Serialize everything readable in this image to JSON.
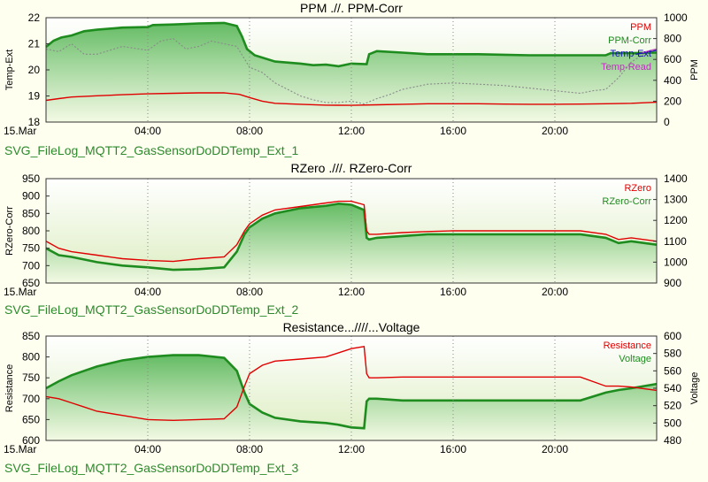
{
  "links": [
    "SVG_FileLog_MQTT2_GasSensorDoDDTemp_Ext_1",
    "SVG_FileLog_MQTT2_GasSensorDoDDTemp_Ext_2",
    "SVG_FileLog_MQTT2_GasSensorDoDDTemp_Ext_3"
  ],
  "colors": {
    "background": "#fffff0",
    "green": "#1e8c1e",
    "red": "#e00000",
    "blue": "#1414b4",
    "magenta": "#c030c0",
    "grey": "#8a8a8a",
    "fill_dark": "#5cb85c",
    "fill_light": "#f6fbe8"
  },
  "chart_data": [
    {
      "type": "line",
      "title": "PPM .//. PPM-Corr",
      "xlabel": "15.Mar",
      "ylabel_left": "Temp-Ext",
      "ylabel_right": "PPM",
      "x_ticks": [
        "04:00",
        "08:00",
        "12:00",
        "16:00",
        "20:00"
      ],
      "x_range_hours": [
        0,
        24
      ],
      "ylim_left": [
        18,
        22
      ],
      "yticks_left": [
        "18",
        "19",
        "20",
        "21",
        "22"
      ],
      "ylim_right": [
        0,
        1000
      ],
      "yticks_right": [
        "0",
        "200",
        "400",
        "600",
        "800",
        "1000"
      ],
      "grid": true,
      "legend": "top-right",
      "series": [
        {
          "name": "PPM",
          "color": "#e00000",
          "axis": "right",
          "x": [
            0,
            0.5,
            1,
            2,
            3,
            4,
            5,
            6,
            7,
            7.6,
            8,
            8.5,
            9,
            10,
            11,
            12,
            13,
            14,
            15,
            16,
            17,
            18,
            19,
            20,
            21,
            22,
            23,
            24
          ],
          "values": [
            208,
            225,
            240,
            252,
            262,
            270,
            275,
            280,
            280,
            265,
            235,
            200,
            180,
            170,
            162,
            160,
            165,
            170,
            175,
            175,
            175,
            172,
            170,
            170,
            172,
            175,
            180,
            190
          ]
        },
        {
          "name": "PPM-Corr",
          "color": "#1e8c1e",
          "axis": "right",
          "fill": true,
          "x": [
            0,
            0.3,
            0.6,
            1,
            1.5,
            2,
            3,
            4,
            4.2,
            5,
            6,
            7,
            7.5,
            7.7,
            7.9,
            8.2,
            9,
            10,
            10.5,
            11,
            11.5,
            12,
            12.6,
            12.7,
            13,
            14,
            15,
            16,
            17,
            18,
            19,
            20,
            21,
            22,
            22.2,
            23,
            24
          ],
          "values": [
            720,
            780,
            810,
            830,
            870,
            885,
            905,
            910,
            930,
            935,
            945,
            950,
            920,
            820,
            700,
            640,
            580,
            560,
            545,
            550,
            535,
            560,
            555,
            650,
            680,
            665,
            650,
            650,
            650,
            645,
            640,
            640,
            640,
            640,
            660,
            660,
            665
          ]
        },
        {
          "name": "Temp-Ext",
          "color": "#1414b4",
          "axis": "left",
          "x": [
            23.2,
            24
          ],
          "values": [
            20.6,
            20.75
          ]
        },
        {
          "name": "Temp-Read",
          "color": "#c030c0",
          "axis": "left",
          "x": [
            23.4,
            24
          ],
          "values": [
            20.65,
            20.8
          ]
        },
        {
          "name": "",
          "color": "#8a8a8a",
          "axis": "left",
          "dashed": true,
          "x": [
            0,
            0.5,
            1,
            1.5,
            2,
            3,
            4,
            4.5,
            5,
            5.5,
            6,
            6.5,
            7,
            7.5,
            8,
            8.5,
            9,
            9.5,
            10,
            10.5,
            11,
            11.5,
            12,
            12.5,
            13,
            13.5,
            14,
            14.5,
            15,
            16,
            17,
            18,
            19,
            20,
            21,
            21.5,
            22,
            22.5,
            23,
            23.5,
            24
          ],
          "values": [
            20.8,
            20.7,
            21.0,
            20.6,
            20.6,
            20.9,
            20.75,
            21.1,
            21.2,
            20.8,
            20.9,
            21.1,
            21.0,
            20.9,
            20.1,
            19.9,
            19.5,
            19.25,
            19.0,
            18.85,
            18.75,
            18.75,
            18.8,
            18.7,
            18.9,
            19.05,
            19.25,
            19.35,
            19.45,
            19.5,
            19.45,
            19.4,
            19.3,
            19.2,
            19.1,
            19.2,
            19.25,
            19.7,
            20.3,
            20.6,
            20.8
          ]
        }
      ]
    },
    {
      "type": "line",
      "title": "RZero .///. RZero-Corr",
      "xlabel": "15.Mar",
      "ylabel_left": "RZero-Corr",
      "ylabel_right": "",
      "x_ticks": [
        "04:00",
        "08:00",
        "12:00",
        "16:00",
        "20:00"
      ],
      "x_range_hours": [
        0,
        24
      ],
      "ylim_left": [
        650,
        950
      ],
      "yticks_left": [
        "650",
        "700",
        "750",
        "800",
        "850",
        "900",
        "950"
      ],
      "ylim_right": [
        900,
        1400
      ],
      "yticks_right": [
        "900",
        "1000",
        "1100",
        "1200",
        "1300",
        "1400"
      ],
      "grid": true,
      "legend": "top-right",
      "series": [
        {
          "name": "RZero",
          "color": "#e00000",
          "axis": "left",
          "x": [
            0,
            0.5,
            1,
            2,
            3,
            4,
            5,
            6,
            7,
            7.5,
            7.8,
            8,
            8.5,
            9,
            10,
            11,
            11.5,
            12,
            12.5,
            12.6,
            12.7,
            13,
            14,
            15,
            16,
            17,
            18,
            19,
            20,
            21,
            22,
            22.5,
            23,
            24
          ],
          "values": [
            770,
            750,
            740,
            730,
            720,
            715,
            712,
            720,
            725,
            760,
            800,
            820,
            845,
            860,
            870,
            880,
            885,
            885,
            875,
            800,
            790,
            790,
            795,
            798,
            800,
            800,
            800,
            800,
            800,
            800,
            790,
            775,
            780,
            770
          ]
        },
        {
          "name": "RZero-Corr",
          "color": "#1e8c1e",
          "axis": "left",
          "fill": true,
          "x": [
            0,
            0.5,
            1,
            2,
            3,
            4,
            5,
            6,
            7,
            7.5,
            7.8,
            8,
            8.5,
            9,
            10,
            11,
            11.5,
            12,
            12.5,
            12.6,
            12.7,
            13,
            14,
            15,
            16,
            17,
            18,
            19,
            20,
            21,
            22,
            22.5,
            23,
            24
          ],
          "values": [
            750,
            730,
            725,
            710,
            700,
            695,
            688,
            690,
            695,
            740,
            790,
            810,
            835,
            850,
            865,
            872,
            878,
            875,
            860,
            780,
            775,
            780,
            785,
            790,
            790,
            790,
            790,
            790,
            790,
            790,
            780,
            765,
            770,
            760
          ]
        }
      ]
    },
    {
      "type": "line",
      "title": "Resistance...////...Voltage",
      "xlabel": "15.Mar",
      "ylabel_left": "Resistance",
      "ylabel_right": "Voltage",
      "x_ticks": [
        "04:00",
        "08:00",
        "12:00",
        "16:00",
        "20:00"
      ],
      "x_range_hours": [
        0,
        24
      ],
      "ylim_left": [
        600,
        850
      ],
      "yticks_left": [
        "600",
        "650",
        "700",
        "750",
        "800",
        "850"
      ],
      "ylim_right": [
        480,
        600
      ],
      "yticks_right": [
        "480",
        "500",
        "520",
        "540",
        "560",
        "580",
        "600"
      ],
      "grid": true,
      "legend": "top-right",
      "series": [
        {
          "name": "Resistance",
          "color": "#e00000",
          "axis": "left",
          "x": [
            0,
            0.5,
            1,
            1.5,
            2,
            3,
            4,
            5,
            6,
            7,
            7.5,
            7.8,
            8,
            8.5,
            9,
            10,
            11,
            11.5,
            12,
            12.5,
            12.6,
            12.7,
            13,
            14,
            15,
            16,
            17,
            18,
            19,
            20,
            21,
            22,
            22.5,
            23,
            24
          ],
          "values": [
            705,
            700,
            690,
            680,
            670,
            660,
            650,
            648,
            650,
            652,
            680,
            730,
            760,
            780,
            790,
            795,
            800,
            810,
            820,
            825,
            760,
            750,
            750,
            752,
            752,
            752,
            752,
            752,
            752,
            752,
            752,
            730,
            730,
            728,
            720
          ]
        },
        {
          "name": "Voltage",
          "color": "#1e8c1e",
          "axis": "right",
          "fill": true,
          "x": [
            0,
            0.5,
            1,
            1.5,
            2,
            3,
            4,
            5,
            6,
            7,
            7.5,
            7.8,
            8,
            8.5,
            9,
            10,
            11,
            11.5,
            12,
            12.5,
            12.6,
            12.7,
            13,
            14,
            15,
            16,
            17,
            18,
            19,
            20,
            21,
            22,
            22.5,
            23,
            24
          ],
          "values": [
            540,
            548,
            555,
            560,
            565,
            572,
            576,
            578,
            578,
            575,
            560,
            535,
            522,
            512,
            506,
            502,
            500,
            498,
            495,
            494,
            525,
            528,
            528,
            526,
            526,
            526,
            526,
            526,
            526,
            526,
            526,
            535,
            538,
            540,
            545
          ]
        }
      ]
    }
  ]
}
